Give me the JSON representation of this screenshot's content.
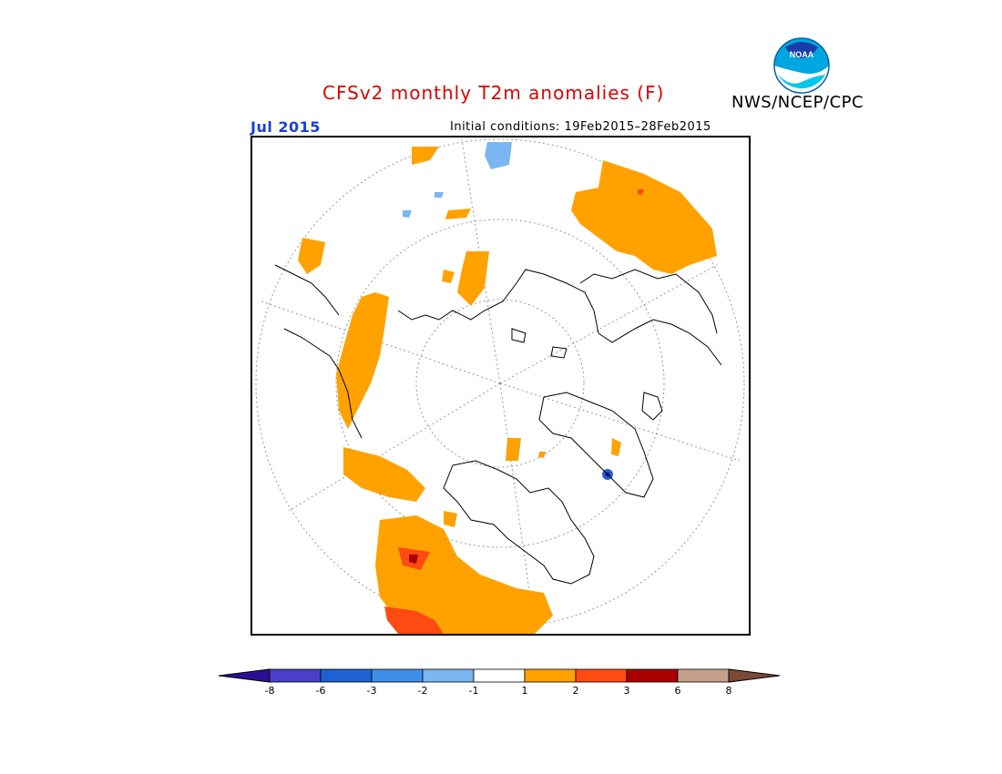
{
  "title": "CFSv2 monthly T2m anomalies (F)",
  "organization": "NWS/NCEP/CPC",
  "logo_text": "NOAA",
  "month": "Jul 2015",
  "initial_conditions": "Initial conditions: 19Feb2015–28Feb2015",
  "colorbar": {
    "colors": [
      "#2a0f96",
      "#4a3fc8",
      "#1d62d4",
      "#3e8ee8",
      "#7ab6f2",
      "#ffffff",
      "#ffa200",
      "#ff4a12",
      "#a80000",
      "#c4a08a",
      "#7a4a36"
    ],
    "labels": [
      "-8",
      "-6",
      "-3",
      "-2",
      "-1",
      "1",
      "2",
      "3",
      "6",
      "8"
    ]
  },
  "colors": {
    "title": "#e00000",
    "month": "#1a3de0",
    "warm_anomaly": "#ffa200",
    "strong_warm_anomaly": "#ff4a12",
    "extreme_warm_anomaly": "#a80000",
    "cool_anomaly": "#7ab6f2"
  }
}
